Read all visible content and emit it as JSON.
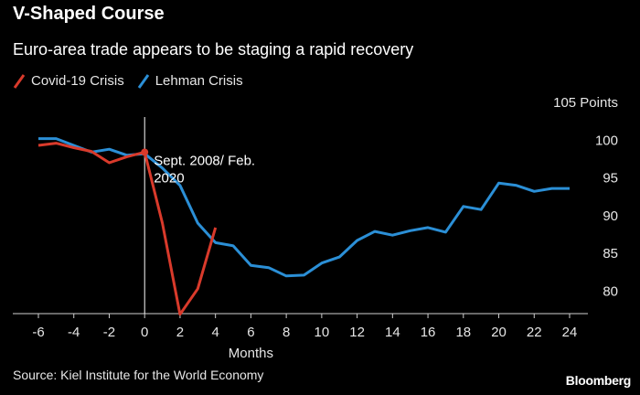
{
  "header": {
    "title": "V-Shaped Course",
    "subtitle": "Euro-area trade appears to be staging a rapid recovery"
  },
  "footer": {
    "source": "Source: Kiel Institute for the World Economy",
    "brand": "Bloomberg"
  },
  "chart_data": {
    "type": "line",
    "xlabel": "Months",
    "ylabel": "Points",
    "xlim": [
      -6,
      24
    ],
    "ylim": [
      77,
      105
    ],
    "x_ticks": [
      -6,
      -4,
      -2,
      0,
      2,
      4,
      6,
      8,
      10,
      12,
      14,
      16,
      18,
      20,
      22,
      24
    ],
    "y_ticks": [
      {
        "value": 105,
        "label": "105 Points"
      },
      {
        "value": 100,
        "label": "100"
      },
      {
        "value": 95,
        "label": "95"
      },
      {
        "value": 90,
        "label": "90"
      },
      {
        "value": 85,
        "label": "85"
      },
      {
        "value": 80,
        "label": "80"
      }
    ],
    "legend_position": "top-left",
    "grid": false,
    "series": [
      {
        "name": "Covid-19 Crisis",
        "color": "#d93a2b",
        "x": [
          -6,
          -5,
          -4,
          -3,
          -2,
          -1,
          0,
          1,
          2,
          3,
          4
        ],
        "y": [
          99.3,
          99.6,
          99.0,
          98.5,
          97.0,
          97.8,
          98.4,
          89.0,
          76.9,
          80.3,
          88.4
        ]
      },
      {
        "name": "Lehman Crisis",
        "color": "#2b8fd6",
        "x": [
          -6,
          -5,
          -4,
          -3,
          -2,
          -1,
          0,
          1,
          2,
          3,
          4,
          5,
          6,
          7,
          8,
          9,
          10,
          11,
          12,
          13,
          14,
          15,
          16,
          17,
          18,
          19,
          20,
          21,
          22,
          23,
          24
        ],
        "y": [
          100.2,
          100.2,
          99.3,
          98.4,
          98.8,
          98.0,
          98.2,
          96.3,
          94.0,
          89.0,
          86.4,
          86.0,
          83.4,
          83.1,
          82.0,
          82.1,
          83.7,
          84.5,
          86.7,
          87.9,
          87.4,
          88.0,
          88.4,
          87.8,
          91.2,
          90.8,
          94.3,
          94.0,
          93.2,
          93.6,
          93.6
        ]
      }
    ],
    "annotations": [
      {
        "text_line1": "Sept. 2008/ Feb.",
        "text_line2": "2020",
        "x": 0,
        "y": 98.4
      }
    ],
    "reference_line_x": 0
  }
}
